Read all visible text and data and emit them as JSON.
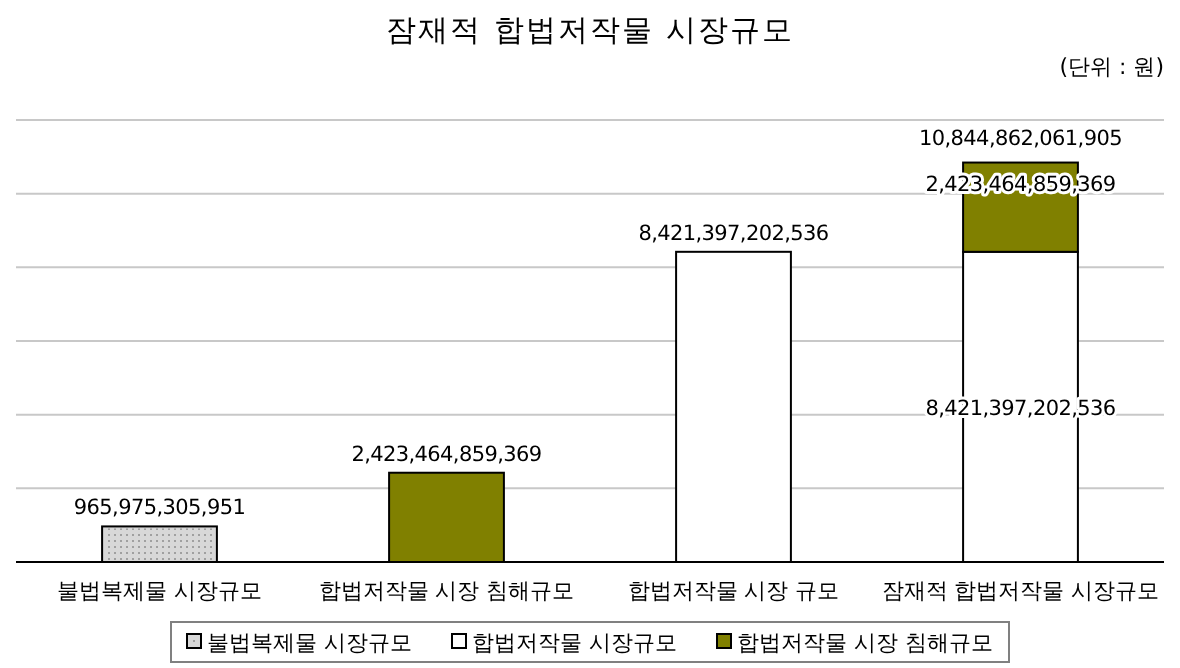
{
  "chart_data": {
    "type": "bar",
    "stacked": true,
    "title": "잠재적 합법저작물 시장규모",
    "annotations": [
      "(단위 : 원)"
    ],
    "categories": [
      "불법복제물 시장규모",
      "합법저작물 시장 침해규모",
      "합법저작물 시장 규모",
      "잠재적 합법저작물 시장규모"
    ],
    "ylim": [
      0,
      12000000000000
    ],
    "yticks": [
      {
        "value": 0,
        "label": null
      },
      {
        "value": 2000000000000,
        "label": null
      },
      {
        "value": 4000000000000,
        "label": null
      },
      {
        "value": 6000000000000,
        "label": null
      },
      {
        "value": 8000000000000,
        "label": null
      },
      {
        "value": 10000000000000,
        "label": null
      },
      {
        "value": 12000000000000,
        "label": null
      }
    ],
    "grid": "y",
    "legend": "bottom",
    "series": [
      {
        "name": "불법복제물 시장규모",
        "color": "#d8d8d8",
        "values": [
          965975305951,
          null,
          null,
          null
        ],
        "value_labels": [
          "965,975,305,951",
          null,
          null,
          null
        ]
      },
      {
        "name": "합법저작물 시장규모",
        "color": "#ffffff",
        "values": [
          null,
          null,
          8421397202536,
          8421397202536
        ],
        "value_labels": [
          null,
          null,
          "8,421,397,202,536",
          "8,421,397,202,536"
        ]
      },
      {
        "name": "합법저작물 시장 침해규모",
        "color": "#808000",
        "values": [
          null,
          2423464859369,
          null,
          2423464859369
        ],
        "value_labels": [
          null,
          "2,423,464,859,369",
          null,
          "2,423,464,859,369"
        ]
      }
    ],
    "totals": [
      null,
      null,
      null,
      "10,844,862,061,905"
    ]
  }
}
